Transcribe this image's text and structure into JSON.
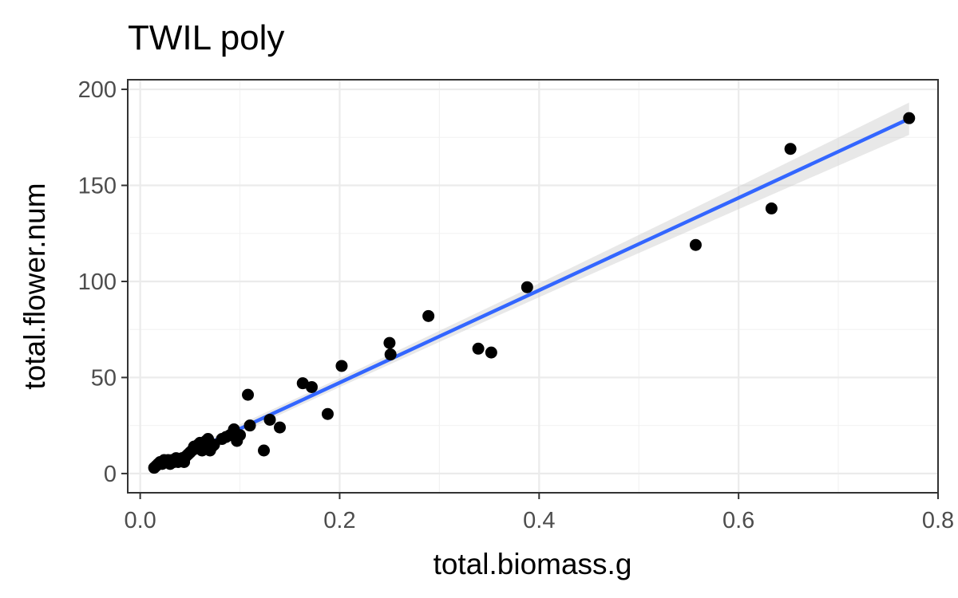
{
  "chart_data": {
    "type": "scatter",
    "title": "TWIL poly",
    "xlabel": "total.biomass.g",
    "ylabel": "total.flower.num",
    "xlim": [
      -0.0125,
      0.8
    ],
    "ylim": [
      -10,
      205
    ],
    "x_ticks": [
      {
        "value": 0.0,
        "label": "0.0"
      },
      {
        "value": 0.2,
        "label": "0.2"
      },
      {
        "value": 0.4,
        "label": "0.4"
      },
      {
        "value": 0.6,
        "label": "0.6"
      },
      {
        "value": 0.8,
        "label": "0.8"
      }
    ],
    "y_ticks": [
      {
        "value": 0,
        "label": "0"
      },
      {
        "value": 50,
        "label": "50"
      },
      {
        "value": 100,
        "label": "100"
      },
      {
        "value": 150,
        "label": "150"
      },
      {
        "value": 200,
        "label": "200"
      }
    ],
    "x_minor": [
      0.1,
      0.3,
      0.5,
      0.7
    ],
    "y_minor": [
      25,
      75,
      125,
      175
    ],
    "grid": true,
    "theme": "bw",
    "point_color": "#000000",
    "points": [
      {
        "x": 0.014,
        "y": 3
      },
      {
        "x": 0.016,
        "y": 4
      },
      {
        "x": 0.018,
        "y": 5
      },
      {
        "x": 0.02,
        "y": 6
      },
      {
        "x": 0.022,
        "y": 5
      },
      {
        "x": 0.024,
        "y": 7
      },
      {
        "x": 0.026,
        "y": 6
      },
      {
        "x": 0.028,
        "y": 7
      },
      {
        "x": 0.03,
        "y": 5
      },
      {
        "x": 0.032,
        "y": 7
      },
      {
        "x": 0.034,
        "y": 6
      },
      {
        "x": 0.036,
        "y": 8
      },
      {
        "x": 0.038,
        "y": 6
      },
      {
        "x": 0.04,
        "y": 7
      },
      {
        "x": 0.042,
        "y": 8
      },
      {
        "x": 0.044,
        "y": 6
      },
      {
        "x": 0.046,
        "y": 9
      },
      {
        "x": 0.048,
        "y": 10
      },
      {
        "x": 0.05,
        "y": 11
      },
      {
        "x": 0.052,
        "y": 12
      },
      {
        "x": 0.054,
        "y": 14
      },
      {
        "x": 0.056,
        "y": 13
      },
      {
        "x": 0.058,
        "y": 15
      },
      {
        "x": 0.06,
        "y": 16
      },
      {
        "x": 0.062,
        "y": 12
      },
      {
        "x": 0.064,
        "y": 13
      },
      {
        "x": 0.066,
        "y": 17
      },
      {
        "x": 0.068,
        "y": 18
      },
      {
        "x": 0.07,
        "y": 12
      },
      {
        "x": 0.072,
        "y": 14
      },
      {
        "x": 0.074,
        "y": 15
      },
      {
        "x": 0.082,
        "y": 18
      },
      {
        "x": 0.086,
        "y": 19
      },
      {
        "x": 0.09,
        "y": 20
      },
      {
        "x": 0.094,
        "y": 23
      },
      {
        "x": 0.097,
        "y": 17
      },
      {
        "x": 0.1,
        "y": 20
      },
      {
        "x": 0.108,
        "y": 41
      },
      {
        "x": 0.11,
        "y": 25
      },
      {
        "x": 0.124,
        "y": 12
      },
      {
        "x": 0.13,
        "y": 28
      },
      {
        "x": 0.14,
        "y": 24
      },
      {
        "x": 0.163,
        "y": 47
      },
      {
        "x": 0.172,
        "y": 45
      },
      {
        "x": 0.188,
        "y": 31
      },
      {
        "x": 0.202,
        "y": 56
      },
      {
        "x": 0.25,
        "y": 68
      },
      {
        "x": 0.251,
        "y": 62
      },
      {
        "x": 0.289,
        "y": 82
      },
      {
        "x": 0.339,
        "y": 65
      },
      {
        "x": 0.352,
        "y": 63
      },
      {
        "x": 0.388,
        "y": 97
      },
      {
        "x": 0.557,
        "y": 119
      },
      {
        "x": 0.633,
        "y": 138
      },
      {
        "x": 0.652,
        "y": 169
      },
      {
        "x": 0.771,
        "y": 185
      }
    ],
    "fit_line": {
      "method": "lm",
      "color": "#3366ff",
      "se_band_color": "#cccccc",
      "points": [
        {
          "x": 0.014,
          "y": 2.5,
          "lo": 0.5,
          "hi": 4.5
        },
        {
          "x": 0.1,
          "y": 23.3,
          "lo": 21.0,
          "hi": 25.6
        },
        {
          "x": 0.2,
          "y": 47.3,
          "lo": 45.0,
          "hi": 49.6
        },
        {
          "x": 0.3,
          "y": 71.4,
          "lo": 68.5,
          "hi": 74.3
        },
        {
          "x": 0.4,
          "y": 95.4,
          "lo": 91.8,
          "hi": 99.0
        },
        {
          "x": 0.5,
          "y": 119.5,
          "lo": 114.8,
          "hi": 124.2
        },
        {
          "x": 0.6,
          "y": 143.5,
          "lo": 137.6,
          "hi": 149.4
        },
        {
          "x": 0.7,
          "y": 167.6,
          "lo": 160.3,
          "hi": 174.9
        },
        {
          "x": 0.771,
          "y": 184.7,
          "lo": 176.3,
          "hi": 193.1
        }
      ]
    }
  }
}
